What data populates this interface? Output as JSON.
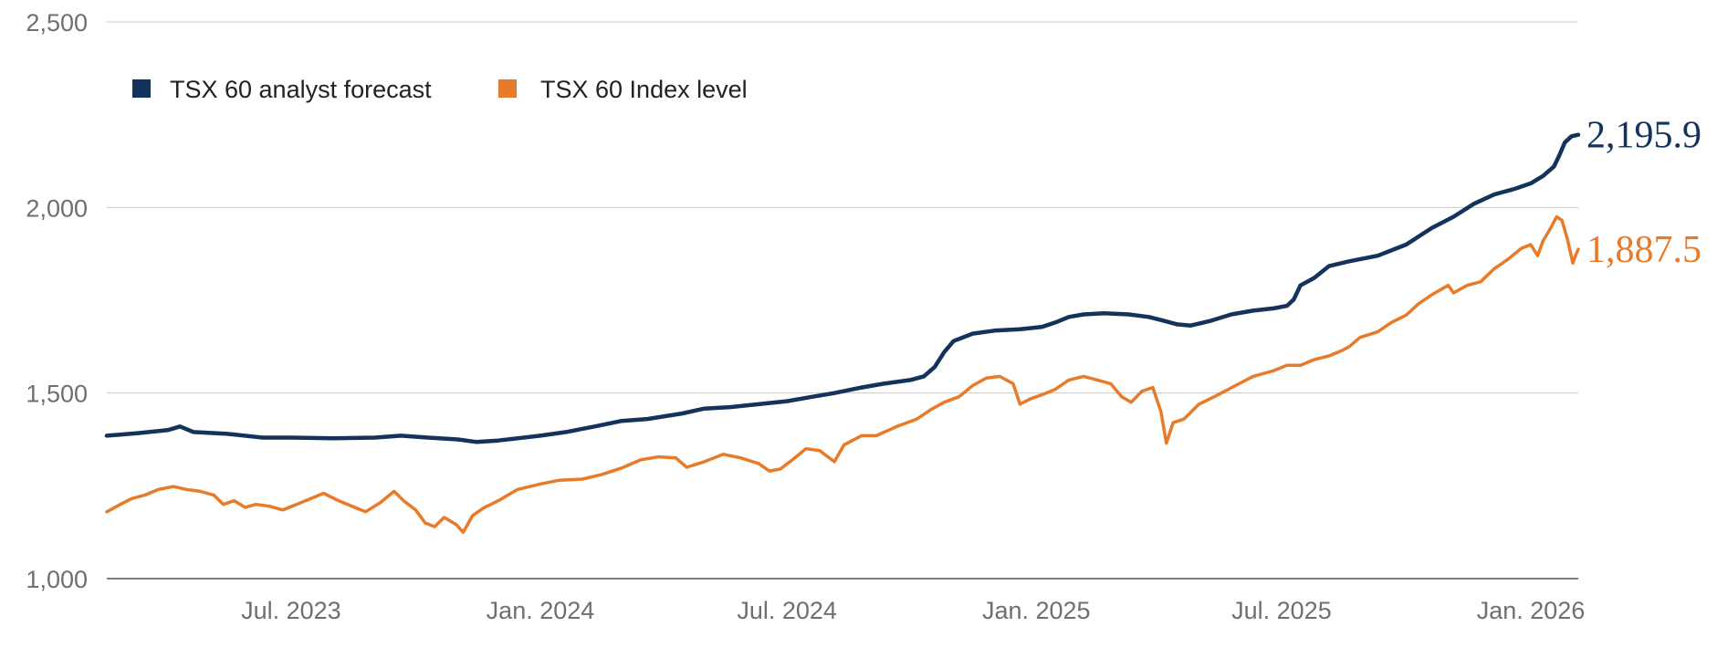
{
  "chart_data": {
    "type": "line",
    "title": "",
    "xlabel": "",
    "ylabel": "",
    "ylim": [
      1000,
      2500
    ],
    "yticks": [
      1000,
      1500,
      2000,
      2500
    ],
    "ytick_labels": [
      "1,000",
      "1,500",
      "2,000",
      "2,500"
    ],
    "xlim": [
      "2023-02-15",
      "2026-02-05"
    ],
    "xticks": [
      "2023-07-01",
      "2024-01-01",
      "2024-07-01",
      "2025-01-01",
      "2025-07-01",
      "2026-01-01"
    ],
    "xtick_labels": [
      "Jul. 2023",
      "Jan. 2024",
      "Jul. 2024",
      "Jan. 2025",
      "Jul. 2025",
      "Jan. 2026"
    ],
    "grid": "horizontal",
    "legend_position": "top-left",
    "series": [
      {
        "name": "TSX 60 analyst forecast",
        "color": "#13335c",
        "end_label": "2,195.9",
        "points": [
          [
            "2023-02-15",
            1385
          ],
          [
            "2023-03-10",
            1392
          ],
          [
            "2023-04-01",
            1400
          ],
          [
            "2023-04-10",
            1410
          ],
          [
            "2023-04-20",
            1395
          ],
          [
            "2023-05-15",
            1390
          ],
          [
            "2023-06-10",
            1380
          ],
          [
            "2023-07-01",
            1380
          ],
          [
            "2023-08-01",
            1378
          ],
          [
            "2023-09-01",
            1380
          ],
          [
            "2023-09-20",
            1385
          ],
          [
            "2023-10-10",
            1380
          ],
          [
            "2023-11-01",
            1375
          ],
          [
            "2023-11-15",
            1368
          ],
          [
            "2023-12-01",
            1372
          ],
          [
            "2024-01-01",
            1385
          ],
          [
            "2024-01-20",
            1395
          ],
          [
            "2024-02-10",
            1410
          ],
          [
            "2024-03-01",
            1425
          ],
          [
            "2024-03-20",
            1430
          ],
          [
            "2024-04-15",
            1445
          ],
          [
            "2024-05-01",
            1458
          ],
          [
            "2024-05-20",
            1462
          ],
          [
            "2024-06-10",
            1470
          ],
          [
            "2024-07-01",
            1478
          ],
          [
            "2024-07-20",
            1490
          ],
          [
            "2024-08-05",
            1500
          ],
          [
            "2024-08-25",
            1515
          ],
          [
            "2024-09-10",
            1525
          ],
          [
            "2024-09-30",
            1535
          ],
          [
            "2024-10-10",
            1545
          ],
          [
            "2024-10-18",
            1570
          ],
          [
            "2024-10-25",
            1610
          ],
          [
            "2024-11-01",
            1640
          ],
          [
            "2024-11-15",
            1660
          ],
          [
            "2024-12-01",
            1668
          ],
          [
            "2024-12-20",
            1672
          ],
          [
            "2025-01-05",
            1678
          ],
          [
            "2025-01-15",
            1690
          ],
          [
            "2025-01-25",
            1705
          ],
          [
            "2025-02-05",
            1712
          ],
          [
            "2025-02-20",
            1715
          ],
          [
            "2025-03-10",
            1712
          ],
          [
            "2025-03-25",
            1705
          ],
          [
            "2025-04-05",
            1695
          ],
          [
            "2025-04-15",
            1685
          ],
          [
            "2025-04-25",
            1682
          ],
          [
            "2025-05-10",
            1695
          ],
          [
            "2025-05-25",
            1712
          ],
          [
            "2025-06-10",
            1722
          ],
          [
            "2025-06-25",
            1728
          ],
          [
            "2025-07-05",
            1735
          ],
          [
            "2025-07-10",
            1752
          ],
          [
            "2025-07-15",
            1790
          ],
          [
            "2025-07-25",
            1810
          ],
          [
            "2025-08-05",
            1842
          ],
          [
            "2025-08-20",
            1855
          ],
          [
            "2025-09-10",
            1870
          ],
          [
            "2025-10-01",
            1900
          ],
          [
            "2025-10-20",
            1945
          ],
          [
            "2025-11-05",
            1975
          ],
          [
            "2025-11-20",
            2010
          ],
          [
            "2025-12-05",
            2035
          ],
          [
            "2025-12-20",
            2050
          ],
          [
            "2026-01-01",
            2065
          ],
          [
            "2026-01-10",
            2085
          ],
          [
            "2026-01-18",
            2110
          ],
          [
            "2026-01-22",
            2140
          ],
          [
            "2026-01-26",
            2175
          ],
          [
            "2026-01-31",
            2192
          ],
          [
            "2026-02-05",
            2195.9
          ]
        ]
      },
      {
        "name": "TSX 60 Index level",
        "color": "#e87b29",
        "end_label": "1,887.5",
        "points": [
          [
            "2023-02-15",
            1180
          ],
          [
            "2023-02-25",
            1200
          ],
          [
            "2023-03-05",
            1215
          ],
          [
            "2023-03-15",
            1225
          ],
          [
            "2023-03-25",
            1240
          ],
          [
            "2023-04-05",
            1248
          ],
          [
            "2023-04-15",
            1240
          ],
          [
            "2023-04-25",
            1235
          ],
          [
            "2023-05-05",
            1225
          ],
          [
            "2023-05-12",
            1200
          ],
          [
            "2023-05-20",
            1210
          ],
          [
            "2023-05-28",
            1192
          ],
          [
            "2023-06-05",
            1200
          ],
          [
            "2023-06-15",
            1195
          ],
          [
            "2023-06-25",
            1185
          ],
          [
            "2023-07-05",
            1200
          ],
          [
            "2023-07-15",
            1215
          ],
          [
            "2023-07-25",
            1230
          ],
          [
            "2023-08-05",
            1210
          ],
          [
            "2023-08-15",
            1195
          ],
          [
            "2023-08-25",
            1180
          ],
          [
            "2023-09-05",
            1205
          ],
          [
            "2023-09-15",
            1235
          ],
          [
            "2023-09-22",
            1210
          ],
          [
            "2023-10-01",
            1185
          ],
          [
            "2023-10-08",
            1150
          ],
          [
            "2023-10-15",
            1140
          ],
          [
            "2023-10-22",
            1165
          ],
          [
            "2023-10-31",
            1145
          ],
          [
            "2023-11-05",
            1125
          ],
          [
            "2023-11-12",
            1170
          ],
          [
            "2023-11-20",
            1190
          ],
          [
            "2023-12-01",
            1210
          ],
          [
            "2023-12-15",
            1240
          ],
          [
            "2024-01-01",
            1255
          ],
          [
            "2024-01-15",
            1265
          ],
          [
            "2024-02-01",
            1268
          ],
          [
            "2024-02-15",
            1280
          ],
          [
            "2024-03-01",
            1298
          ],
          [
            "2024-03-15",
            1320
          ],
          [
            "2024-03-28",
            1328
          ],
          [
            "2024-04-10",
            1325
          ],
          [
            "2024-04-18",
            1300
          ],
          [
            "2024-05-01",
            1315
          ],
          [
            "2024-05-15",
            1335
          ],
          [
            "2024-05-28",
            1325
          ],
          [
            "2024-06-10",
            1310
          ],
          [
            "2024-06-18",
            1290
          ],
          [
            "2024-06-26",
            1295
          ],
          [
            "2024-07-05",
            1320
          ],
          [
            "2024-07-15",
            1350
          ],
          [
            "2024-07-25",
            1345
          ],
          [
            "2024-08-05",
            1315
          ],
          [
            "2024-08-12",
            1360
          ],
          [
            "2024-08-25",
            1385
          ],
          [
            "2024-09-05",
            1385
          ],
          [
            "2024-09-20",
            1410
          ],
          [
            "2024-10-05",
            1430
          ],
          [
            "2024-10-15",
            1455
          ],
          [
            "2024-10-25",
            1475
          ],
          [
            "2024-11-05",
            1490
          ],
          [
            "2024-11-15",
            1520
          ],
          [
            "2024-11-25",
            1540
          ],
          [
            "2024-12-05",
            1545
          ],
          [
            "2024-12-15",
            1525
          ],
          [
            "2024-12-20",
            1470
          ],
          [
            "2024-12-28",
            1485
          ],
          [
            "2025-01-05",
            1495
          ],
          [
            "2025-01-15",
            1510
          ],
          [
            "2025-01-25",
            1535
          ],
          [
            "2025-02-05",
            1545
          ],
          [
            "2025-02-15",
            1535
          ],
          [
            "2025-02-25",
            1525
          ],
          [
            "2025-03-05",
            1490
          ],
          [
            "2025-03-12",
            1475
          ],
          [
            "2025-03-20",
            1505
          ],
          [
            "2025-03-28",
            1515
          ],
          [
            "2025-04-03",
            1450
          ],
          [
            "2025-04-07",
            1365
          ],
          [
            "2025-04-12",
            1420
          ],
          [
            "2025-04-20",
            1430
          ],
          [
            "2025-05-01",
            1470
          ],
          [
            "2025-05-15",
            1495
          ],
          [
            "2025-05-28",
            1520
          ],
          [
            "2025-06-10",
            1545
          ],
          [
            "2025-06-25",
            1560
          ],
          [
            "2025-07-05",
            1575
          ],
          [
            "2025-07-15",
            1575
          ],
          [
            "2025-07-25",
            1590
          ],
          [
            "2025-08-05",
            1600
          ],
          [
            "2025-08-15",
            1615
          ],
          [
            "2025-08-20",
            1625
          ],
          [
            "2025-08-28",
            1650
          ],
          [
            "2025-09-10",
            1665
          ],
          [
            "2025-09-20",
            1690
          ],
          [
            "2025-10-01",
            1710
          ],
          [
            "2025-10-10",
            1740
          ],
          [
            "2025-10-20",
            1765
          ],
          [
            "2025-11-01",
            1790
          ],
          [
            "2025-11-05",
            1770
          ],
          [
            "2025-11-15",
            1790
          ],
          [
            "2025-11-25",
            1800
          ],
          [
            "2025-12-05",
            1835
          ],
          [
            "2025-12-15",
            1860
          ],
          [
            "2025-12-25",
            1890
          ],
          [
            "2026-01-01",
            1900
          ],
          [
            "2026-01-06",
            1870
          ],
          [
            "2026-01-10",
            1910
          ],
          [
            "2026-01-15",
            1940
          ],
          [
            "2026-01-20",
            1975
          ],
          [
            "2026-01-24",
            1965
          ],
          [
            "2026-01-28",
            1915
          ],
          [
            "2026-02-01",
            1850
          ],
          [
            "2026-02-03",
            1870
          ],
          [
            "2026-02-05",
            1887.5
          ]
        ]
      }
    ]
  }
}
